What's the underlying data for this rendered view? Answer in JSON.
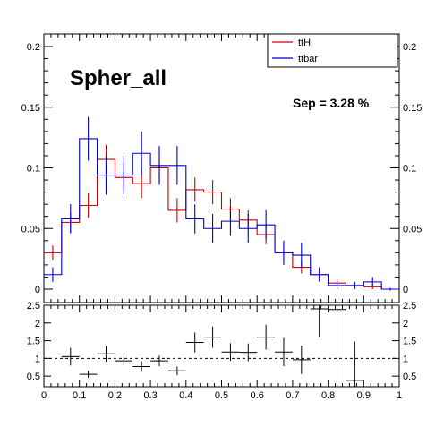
{
  "chart_data": [
    {
      "type": "histogram",
      "title": "Spher_all",
      "annotation": "Sep = 3.28 %",
      "xlim": [
        0,
        1
      ],
      "ylim": [
        0,
        0.21
      ],
      "x_ticks": [
        "0",
        "0.1",
        "0.2",
        "0.3",
        "0.4",
        "0.5",
        "0.6",
        "0.7",
        "0.8",
        "0.9",
        "1"
      ],
      "y_ticks": [
        "0",
        "0.05",
        "0.1",
        "0.15",
        "0.2"
      ],
      "y_tick_values": [
        0,
        0.05,
        0.1,
        0.15,
        0.2
      ],
      "legend_position": "top-right",
      "bin_edges": [
        0,
        0.05,
        0.1,
        0.15,
        0.2,
        0.25,
        0.3,
        0.35,
        0.4,
        0.45,
        0.5,
        0.55,
        0.6,
        0.65,
        0.7,
        0.75,
        0.8,
        0.85,
        0.9,
        0.95,
        1.0
      ],
      "series": [
        {
          "name": "ttH",
          "color": "#cc0000",
          "values": [
            0.03,
            0.055,
            0.069,
            0.107,
            0.092,
            0.087,
            0.1,
            0.065,
            0.082,
            0.08,
            0.066,
            0.057,
            0.045,
            0.03,
            0.018,
            0.012,
            0.005,
            0.003,
            0.002,
            0.0
          ],
          "errors": [
            0.006,
            0.008,
            0.01,
            0.012,
            0.012,
            0.012,
            0.012,
            0.01,
            0.01,
            0.01,
            0.009,
            0.008,
            0.008,
            0.006,
            0.005,
            0.004,
            0.003,
            0.002,
            0.002,
            0.001
          ]
        },
        {
          "name": "ttbar",
          "color": "#0000cc",
          "values": [
            0.012,
            0.058,
            0.124,
            0.094,
            0.094,
            0.112,
            0.102,
            0.102,
            0.058,
            0.05,
            0.056,
            0.05,
            0.053,
            0.03,
            0.028,
            0.012,
            0.003,
            0.003,
            0.006,
            0.0
          ],
          "errors": [
            0.006,
            0.012,
            0.018,
            0.016,
            0.016,
            0.018,
            0.016,
            0.016,
            0.012,
            0.012,
            0.012,
            0.012,
            0.012,
            0.01,
            0.01,
            0.006,
            0.003,
            0.003,
            0.004,
            0.001
          ]
        }
      ]
    },
    {
      "type": "scatter",
      "subtype": "ratio",
      "xlim": [
        0,
        1
      ],
      "ylim": [
        0.2,
        2.5
      ],
      "x_ticks": [
        "0",
        "0.1",
        "0.2",
        "0.3",
        "0.4",
        "0.5",
        "0.6",
        "0.7",
        "0.8",
        "0.9",
        "1"
      ],
      "y_ticks": [
        "0.5",
        "1",
        "1.5",
        "2",
        "2.5"
      ],
      "y_tick_values": [
        0.5,
        1,
        1.5,
        2,
        2.5
      ],
      "reference_line": 1,
      "x": [
        0.075,
        0.125,
        0.175,
        0.225,
        0.275,
        0.325,
        0.375,
        0.425,
        0.475,
        0.525,
        0.575,
        0.625,
        0.675,
        0.725,
        0.775,
        0.825,
        0.875
      ],
      "values": [
        1.05,
        0.55,
        1.13,
        0.93,
        0.77,
        0.93,
        0.65,
        1.45,
        1.6,
        1.18,
        1.17,
        1.6,
        1.18,
        0.96,
        2.4,
        2.38,
        0.38
      ],
      "errors": [
        0.25,
        0.1,
        0.22,
        0.12,
        0.15,
        0.15,
        0.12,
        0.28,
        0.3,
        0.25,
        0.25,
        0.35,
        0.4,
        0.4,
        0.8,
        2.4,
        1.1
      ]
    }
  ]
}
